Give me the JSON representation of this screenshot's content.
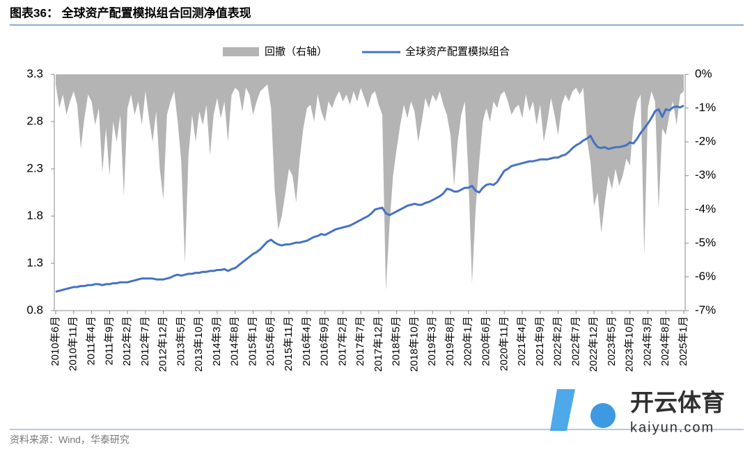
{
  "header": {
    "title": "图表36：  全球资产配置模拟组合回测净值表现"
  },
  "chart_data": {
    "type": "line",
    "categories": [
      "2010年6月",
      null,
      null,
      null,
      null,
      "2010年11月",
      null,
      null,
      null,
      null,
      "2011年4月",
      null,
      null,
      null,
      null,
      "2011年9月",
      null,
      null,
      null,
      null,
      "2012年2月",
      null,
      null,
      null,
      null,
      "2012年7月",
      null,
      null,
      null,
      null,
      "2012年12月",
      null,
      null,
      null,
      null,
      "2013年5月",
      null,
      null,
      null,
      null,
      "2013年10月",
      null,
      null,
      null,
      null,
      "2014年3月",
      null,
      null,
      null,
      null,
      "2014年8月",
      null,
      null,
      null,
      null,
      "2015年1月",
      null,
      null,
      null,
      null,
      "2015年6月",
      null,
      null,
      null,
      null,
      "2015年11月",
      null,
      null,
      null,
      null,
      "2016年4月",
      null,
      null,
      null,
      null,
      "2016年9月",
      null,
      null,
      null,
      null,
      "2017年2月",
      null,
      null,
      null,
      null,
      "2017年7月",
      null,
      null,
      null,
      null,
      "2017年12月",
      null,
      null,
      null,
      null,
      "2018年5月",
      null,
      null,
      null,
      null,
      "2018年10月",
      null,
      null,
      null,
      null,
      "2019年3月",
      null,
      null,
      null,
      null,
      "2019年8月",
      null,
      null,
      null,
      null,
      "2020年1月",
      null,
      null,
      null,
      null,
      "2020年6月",
      null,
      null,
      null,
      null,
      "2020年11月",
      null,
      null,
      null,
      null,
      "2021年4月",
      null,
      null,
      null,
      null,
      "2021年9月",
      null,
      null,
      null,
      null,
      "2022年2月",
      null,
      null,
      null,
      null,
      "2022年7月",
      null,
      null,
      null,
      null,
      "2022年12月",
      null,
      null,
      null,
      null,
      "2023年5月",
      null,
      null,
      null,
      null,
      "2023年10月",
      null,
      null,
      null,
      null,
      "2024年3月",
      null,
      null,
      null,
      null,
      "2024年8月",
      null,
      null,
      null,
      null,
      "2025年1月"
    ],
    "series": [
      {
        "name": "回撤（右轴）",
        "color": "#b4b4b4",
        "axis": "y2",
        "style": "area",
        "values": [
          -0.3,
          -1.0,
          -0.6,
          -1.2,
          -0.8,
          -0.5,
          -0.9,
          -2.2,
          -1.3,
          -0.6,
          -0.8,
          -1.5,
          -1.0,
          -2.9,
          -1.6,
          -3.0,
          -1.4,
          -2.0,
          -1.2,
          -3.6,
          -1.0,
          -0.6,
          -1.2,
          -0.8,
          -1.5,
          -0.5,
          -1.3,
          -2.0,
          -1.1,
          -2.8,
          -3.7,
          -1.2,
          -0.8,
          -0.5,
          -1.4,
          -2.6,
          -5.6,
          -2.4,
          -1.2,
          -2.0,
          -1.1,
          -1.5,
          -0.9,
          -2.4,
          -1.2,
          -0.7,
          -1.3,
          -0.8,
          -2.0,
          -0.6,
          -0.4,
          -0.5,
          -1.1,
          -0.4,
          -0.6,
          -1.2,
          -0.8,
          -0.5,
          -0.4,
          -0.3,
          -1.0,
          -3.4,
          -4.6,
          -4.2,
          -3.5,
          -2.8,
          -3.0,
          -3.8,
          -2.5,
          -1.6,
          -1.0,
          -0.9,
          -1.4,
          -0.6,
          -1.1,
          -1.4,
          -0.8,
          -1.0,
          -0.7,
          -0.5,
          -0.8,
          -0.6,
          -0.9,
          -0.5,
          -0.8,
          -0.4,
          -0.7,
          -1.0,
          -0.6,
          -0.5,
          -0.9,
          -1.2,
          -6.4,
          -4.5,
          -3.0,
          -2.2,
          -1.5,
          -0.9,
          -1.3,
          -0.8,
          -1.1,
          -2.0,
          -1.4,
          -0.7,
          -1.0,
          -0.6,
          -0.8,
          -0.5,
          -0.9,
          -1.2,
          -1.8,
          -3.3,
          -2.0,
          -1.2,
          -0.8,
          -3.0,
          -6.2,
          -4.0,
          -2.6,
          -1.4,
          -1.0,
          -1.4,
          -0.8,
          -1.0,
          -0.6,
          -0.5,
          -0.8,
          -1.2,
          -1.0,
          -0.9,
          -1.3,
          -0.6,
          -1.1,
          -0.8,
          -1.5,
          -0.9,
          -2.0,
          -1.4,
          -0.7,
          -1.2,
          -1.8,
          -0.9,
          -0.6,
          -0.8,
          -0.5,
          -0.4,
          -0.6,
          -0.4,
          -1.9,
          -2.6,
          -3.9,
          -3.5,
          -4.7,
          -3.8,
          -3.0,
          -3.4,
          -2.8,
          -3.3,
          -3.0,
          -2.5,
          -2.7,
          -1.4,
          -0.8,
          -0.6,
          -5.4,
          -1.0,
          -0.5,
          -0.8,
          -4.0,
          -1.6,
          -1.8,
          -1.2,
          -0.8,
          -1.5,
          -0.6,
          -0.5
        ]
      },
      {
        "name": "全球资产配置模拟组合",
        "color": "#4472c4",
        "values": [
          1.0,
          1.01,
          1.02,
          1.03,
          1.04,
          1.05,
          1.05,
          1.06,
          1.06,
          1.07,
          1.07,
          1.08,
          1.08,
          1.07,
          1.08,
          1.08,
          1.09,
          1.09,
          1.1,
          1.1,
          1.1,
          1.11,
          1.12,
          1.13,
          1.14,
          1.14,
          1.14,
          1.14,
          1.13,
          1.13,
          1.13,
          1.14,
          1.15,
          1.17,
          1.18,
          1.17,
          1.18,
          1.19,
          1.19,
          1.2,
          1.2,
          1.21,
          1.21,
          1.22,
          1.22,
          1.23,
          1.23,
          1.24,
          1.22,
          1.24,
          1.25,
          1.28,
          1.31,
          1.34,
          1.37,
          1.4,
          1.42,
          1.45,
          1.49,
          1.53,
          1.55,
          1.52,
          1.5,
          1.49,
          1.5,
          1.5,
          1.51,
          1.52,
          1.52,
          1.53,
          1.54,
          1.56,
          1.58,
          1.59,
          1.61,
          1.6,
          1.62,
          1.64,
          1.66,
          1.67,
          1.68,
          1.69,
          1.7,
          1.72,
          1.74,
          1.76,
          1.78,
          1.8,
          1.83,
          1.87,
          1.88,
          1.89,
          1.83,
          1.81,
          1.83,
          1.85,
          1.87,
          1.89,
          1.91,
          1.92,
          1.93,
          1.92,
          1.92,
          1.94,
          1.95,
          1.97,
          1.99,
          2.01,
          2.04,
          2.09,
          2.08,
          2.06,
          2.06,
          2.08,
          2.1,
          2.1,
          2.12,
          2.07,
          2.05,
          2.1,
          2.13,
          2.14,
          2.13,
          2.16,
          2.22,
          2.28,
          2.3,
          2.33,
          2.34,
          2.35,
          2.36,
          2.37,
          2.38,
          2.38,
          2.39,
          2.4,
          2.4,
          2.4,
          2.41,
          2.42,
          2.42,
          2.44,
          2.45,
          2.48,
          2.52,
          2.55,
          2.57,
          2.6,
          2.62,
          2.65,
          2.58,
          2.53,
          2.52,
          2.53,
          2.51,
          2.52,
          2.53,
          2.53,
          2.54,
          2.55,
          2.58,
          2.57,
          2.62,
          2.68,
          2.73,
          2.78,
          2.84,
          2.91,
          2.93,
          2.85,
          2.93,
          2.92,
          2.95,
          2.96,
          2.95,
          2.97
        ]
      }
    ],
    "ylim": [
      0.8,
      3.3
    ],
    "yticks": [
      0.8,
      1.3,
      1.8,
      2.3,
      2.8,
      3.3
    ],
    "y2lim": [
      -7,
      0
    ],
    "y2ticks": [
      {
        "value": 0,
        "label": "0%"
      },
      {
        "value": -1,
        "label": "-1%"
      },
      {
        "value": -2,
        "label": "-2%"
      },
      {
        "value": -3,
        "label": "-3%"
      },
      {
        "value": -4,
        "label": "-4%"
      },
      {
        "value": -5,
        "label": "-5%"
      },
      {
        "value": -6,
        "label": "-6%"
      },
      {
        "value": -7,
        "label": "-7%"
      }
    ],
    "legend": "top"
  },
  "footer": {
    "source": "资料来源：Wind，华泰研究"
  },
  "watermark": {
    "brand": "开云体育",
    "url": "kaiyun.com"
  }
}
